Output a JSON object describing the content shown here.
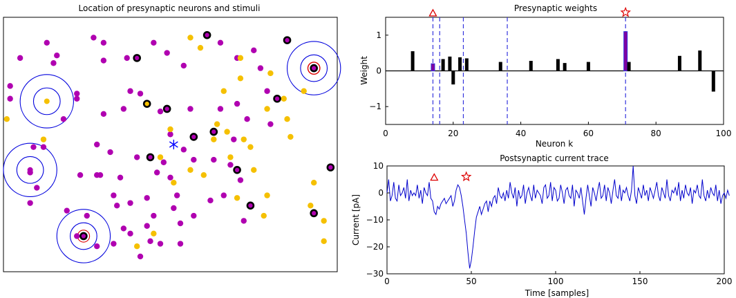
{
  "chart_data": [
    {
      "type": "scatter",
      "title": "Location of presynaptic neurons and stimuli",
      "xlim": [
        0,
        100
      ],
      "ylim": [
        0,
        100
      ],
      "colors": {
        "magenta": "#b000b0",
        "gold": "#f5c000",
        "selected_edge": "#000000",
        "ring": "#0000dd",
        "target_ring": "#dd0000",
        "center_star": "#0000ff"
      },
      "magenta_points": [
        [
          5,
          84
        ],
        [
          13,
          90
        ],
        [
          15,
          82
        ],
        [
          16,
          85
        ],
        [
          27,
          92
        ],
        [
          30,
          90
        ],
        [
          30,
          83
        ],
        [
          37,
          84
        ],
        [
          36,
          64
        ],
        [
          38,
          71
        ],
        [
          45,
          90
        ],
        [
          54,
          81
        ],
        [
          49,
          86
        ],
        [
          65,
          90
        ],
        [
          70,
          84
        ],
        [
          77,
          80
        ],
        [
          75,
          87
        ],
        [
          79,
          71
        ],
        [
          73,
          60
        ],
        [
          80,
          58
        ],
        [
          56,
          64
        ],
        [
          41,
          70
        ],
        [
          47,
          63
        ],
        [
          50,
          54
        ],
        [
          65,
          64
        ],
        [
          70,
          66
        ],
        [
          69,
          52
        ],
        [
          68,
          42
        ],
        [
          63,
          44
        ],
        [
          71,
          36
        ],
        [
          66,
          30
        ],
        [
          72,
          20
        ],
        [
          54,
          48
        ],
        [
          46,
          39
        ],
        [
          43,
          29
        ],
        [
          43,
          18
        ],
        [
          36,
          17
        ],
        [
          33,
          30
        ],
        [
          35,
          37
        ],
        [
          32,
          47
        ],
        [
          28,
          50
        ],
        [
          30,
          62
        ],
        [
          57,
          44
        ],
        [
          57,
          22
        ],
        [
          48,
          43
        ],
        [
          23,
          38
        ],
        [
          29,
          38
        ],
        [
          52,
          30
        ],
        [
          9,
          49
        ],
        [
          12,
          49
        ],
        [
          10,
          33
        ],
        [
          8,
          27
        ],
        [
          22,
          14
        ],
        [
          19,
          24
        ],
        [
          22,
          68
        ],
        [
          22,
          70
        ],
        [
          18,
          60
        ],
        [
          2,
          73
        ],
        [
          2,
          68
        ],
        [
          8,
          39
        ],
        [
          25,
          22
        ],
        [
          28,
          10
        ],
        [
          38,
          27
        ],
        [
          62,
          28
        ],
        [
          41,
          6
        ],
        [
          45,
          22
        ],
        [
          50,
          37
        ],
        [
          51,
          25
        ],
        [
          53,
          19
        ],
        [
          44,
          12
        ],
        [
          38,
          15
        ],
        [
          33,
          11
        ],
        [
          47,
          11
        ],
        [
          53,
          11
        ],
        [
          40,
          45
        ],
        [
          28,
          38
        ],
        [
          34,
          26
        ]
      ],
      "gold_points": [
        [
          56,
          92
        ],
        [
          59,
          88
        ],
        [
          71,
          84
        ],
        [
          71,
          76
        ],
        [
          66,
          71
        ],
        [
          80,
          78
        ],
        [
          84,
          68
        ],
        [
          90,
          71
        ],
        [
          85,
          60
        ],
        [
          86,
          53
        ],
        [
          79,
          64
        ],
        [
          64,
          58
        ],
        [
          72,
          52
        ],
        [
          68,
          45
        ],
        [
          75,
          40
        ],
        [
          79,
          30
        ],
        [
          70,
          29
        ],
        [
          78,
          22
        ],
        [
          93,
          35
        ],
        [
          92,
          26
        ],
        [
          96,
          20
        ],
        [
          96,
          12
        ],
        [
          45,
          15
        ],
        [
          40,
          10
        ],
        [
          47,
          45
        ],
        [
          51,
          35
        ],
        [
          12,
          52
        ],
        [
          1,
          60
        ],
        [
          50,
          56
        ],
        [
          63,
          52
        ],
        [
          56,
          40
        ],
        [
          60,
          38
        ],
        [
          74,
          49
        ],
        [
          67,
          55
        ]
      ],
      "selected_points": [
        [
          61,
          93
        ],
        [
          40,
          84
        ],
        [
          85,
          91
        ],
        [
          93,
          80
        ],
        [
          43,
          66
        ],
        [
          82,
          68
        ],
        [
          93,
          23
        ],
        [
          57,
          53
        ],
        [
          63,
          55
        ],
        [
          74,
          26
        ],
        [
          44,
          45
        ],
        [
          70,
          40
        ],
        [
          98,
          41
        ],
        [
          49,
          64
        ],
        [
          24,
          14
        ]
      ],
      "stimuli": [
        {
          "x": 13,
          "y": 67,
          "radii": [
            4,
            8
          ],
          "target": false
        },
        {
          "x": 8,
          "y": 40,
          "radii": [
            4,
            8
          ],
          "target": false
        },
        {
          "x": 24,
          "y": 14,
          "radii": [
            4,
            8
          ],
          "target": false
        },
        {
          "x": 93,
          "y": 80,
          "radii": [
            4,
            8
          ],
          "target": true,
          "target_ring": 1.8
        },
        {
          "x": 24,
          "y": 14,
          "radii": [
            1.8
          ],
          "target": true
        }
      ],
      "center": {
        "x": 51,
        "y": 50
      }
    },
    {
      "type": "bar",
      "title": "Presynaptic weights",
      "xlabel": "Neuron k",
      "ylabel": "Weight",
      "xlim": [
        0,
        100
      ],
      "ylim": [
        -1.5,
        1.5
      ],
      "xticks": [
        "0",
        "20",
        "40",
        "60",
        "80",
        "100"
      ],
      "yticks": [
        "1",
        "0",
        "−1"
      ],
      "bars": [
        [
          8,
          0.55
        ],
        [
          14,
          0.2
        ],
        [
          17,
          0.33
        ],
        [
          19,
          0.4
        ],
        [
          20,
          -0.38
        ],
        [
          22,
          0.38
        ],
        [
          24,
          0.35
        ],
        [
          34,
          0.25
        ],
        [
          43,
          0.28
        ],
        [
          51,
          0.33
        ],
        [
          53,
          0.22
        ],
        [
          60,
          0.25
        ],
        [
          71,
          1.1
        ],
        [
          72,
          0.25
        ],
        [
          87,
          0.42
        ],
        [
          93,
          0.57
        ],
        [
          97,
          -0.58
        ]
      ],
      "highlight_bars": [
        14,
        71
      ],
      "dashed_lines": [
        14,
        16,
        23,
        36,
        71
      ],
      "markers": {
        "triangle_at": 14,
        "star_at": 71
      },
      "colors": {
        "bar": "#000000",
        "highlight": "#8000a0",
        "dashed": "#3333dd",
        "marker": "#dd0000"
      }
    },
    {
      "type": "line",
      "title": "Postsynaptic current trace",
      "xlabel": "Time [samples]",
      "ylabel": "Current [pA]",
      "xlim": [
        0,
        200
      ],
      "ylim": [
        -30,
        10
      ],
      "xticks": [
        "0",
        "50",
        "100",
        "150",
        "200"
      ],
      "yticks": [
        "10",
        "0",
        "−10",
        "−20",
        "−30"
      ],
      "series": [
        {
          "values": [
            0,
            5,
            -3,
            -1,
            4,
            -2,
            -3,
            3,
            -1,
            0,
            2,
            -2,
            5,
            -3,
            1,
            -1,
            0,
            -1,
            3,
            -2,
            1,
            -4,
            2,
            0,
            -1,
            4,
            -2,
            -3,
            -7,
            -8,
            -5,
            -6,
            -4,
            -3,
            -2,
            -4,
            -3,
            -2,
            -1,
            -5,
            -3,
            1,
            3,
            2,
            -1,
            -5,
            -10,
            -15,
            -22,
            -28,
            -25,
            -20,
            -14,
            -9,
            -7,
            -5,
            -8,
            -6,
            -4,
            -3,
            -7,
            -3,
            -5,
            -2,
            -1,
            -4,
            2,
            -1,
            -2,
            0,
            -3,
            1,
            -2,
            4,
            0,
            -2,
            2,
            -5,
            1,
            -2,
            -1,
            3,
            -4,
            0,
            2,
            -1,
            -3,
            3,
            -2,
            1,
            0,
            -1,
            -4,
            2,
            3,
            -2,
            -1,
            4,
            -3,
            2,
            1,
            -3,
            -2,
            3,
            0,
            -4,
            1,
            2,
            -1,
            -2,
            3,
            -5,
            1,
            0,
            -2,
            2,
            -3,
            -8,
            -2,
            3,
            -1,
            -5,
            2,
            0,
            -3,
            1,
            4,
            -2,
            -1,
            3,
            -3,
            2,
            0,
            -4,
            1,
            5,
            -1,
            -2,
            3,
            -3,
            1,
            0,
            2,
            -1,
            -3,
            1,
            10,
            -1,
            -4,
            2,
            0,
            -2,
            3,
            -1,
            1,
            -3,
            2,
            0,
            -2,
            1,
            4,
            -1,
            -3,
            2,
            0,
            -2,
            5,
            -1,
            -3,
            1,
            0,
            2,
            -1,
            4,
            -3,
            1,
            -2,
            3,
            0,
            -1,
            2,
            -4,
            1,
            0,
            3,
            -1,
            -2,
            5,
            -1,
            -3,
            1,
            -2,
            2,
            0,
            -1,
            3,
            -3,
            1,
            -4,
            -1,
            0,
            -2,
            1,
            -1
          ]
        }
      ],
      "markers": {
        "triangle_at": [
          28,
          6
        ],
        "star_at": [
          47,
          6
        ]
      },
      "colors": {
        "line": "#0000cc",
        "marker": "#dd0000"
      }
    }
  ]
}
